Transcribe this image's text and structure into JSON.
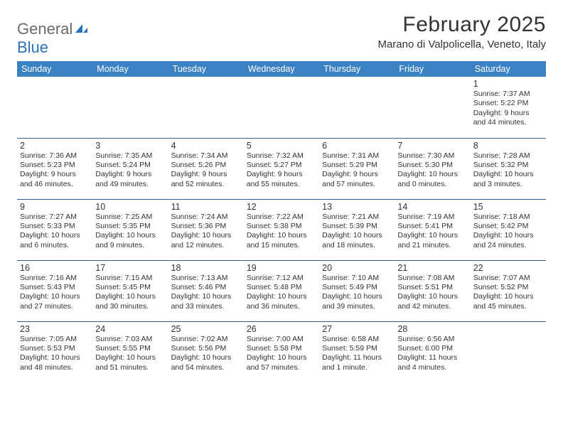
{
  "logo": {
    "text1": "General",
    "text2": "Blue"
  },
  "title": "February 2025",
  "location": "Marano di Valpolicella, Veneto, Italy",
  "colors": {
    "header_bg": "#3b82c4",
    "header_text": "#ffffff",
    "rule": "#2f5f8f",
    "text": "#333333",
    "logo_gray": "#6a6a6a",
    "logo_blue": "#2b72b9"
  },
  "weekdays": [
    "Sunday",
    "Monday",
    "Tuesday",
    "Wednesday",
    "Thursday",
    "Friday",
    "Saturday"
  ],
  "rows": [
    [
      null,
      null,
      null,
      null,
      null,
      null,
      {
        "n": "1",
        "sr": "7:37 AM",
        "ss": "5:22 PM",
        "dl": "9 hours and 44 minutes."
      }
    ],
    [
      {
        "n": "2",
        "sr": "7:36 AM",
        "ss": "5:23 PM",
        "dl": "9 hours and 46 minutes."
      },
      {
        "n": "3",
        "sr": "7:35 AM",
        "ss": "5:24 PM",
        "dl": "9 hours and 49 minutes."
      },
      {
        "n": "4",
        "sr": "7:34 AM",
        "ss": "5:26 PM",
        "dl": "9 hours and 52 minutes."
      },
      {
        "n": "5",
        "sr": "7:32 AM",
        "ss": "5:27 PM",
        "dl": "9 hours and 55 minutes."
      },
      {
        "n": "6",
        "sr": "7:31 AM",
        "ss": "5:29 PM",
        "dl": "9 hours and 57 minutes."
      },
      {
        "n": "7",
        "sr": "7:30 AM",
        "ss": "5:30 PM",
        "dl": "10 hours and 0 minutes."
      },
      {
        "n": "8",
        "sr": "7:28 AM",
        "ss": "5:32 PM",
        "dl": "10 hours and 3 minutes."
      }
    ],
    [
      {
        "n": "9",
        "sr": "7:27 AM",
        "ss": "5:33 PM",
        "dl": "10 hours and 6 minutes."
      },
      {
        "n": "10",
        "sr": "7:25 AM",
        "ss": "5:35 PM",
        "dl": "10 hours and 9 minutes."
      },
      {
        "n": "11",
        "sr": "7:24 AM",
        "ss": "5:36 PM",
        "dl": "10 hours and 12 minutes."
      },
      {
        "n": "12",
        "sr": "7:22 AM",
        "ss": "5:38 PM",
        "dl": "10 hours and 15 minutes."
      },
      {
        "n": "13",
        "sr": "7:21 AM",
        "ss": "5:39 PM",
        "dl": "10 hours and 18 minutes."
      },
      {
        "n": "14",
        "sr": "7:19 AM",
        "ss": "5:41 PM",
        "dl": "10 hours and 21 minutes."
      },
      {
        "n": "15",
        "sr": "7:18 AM",
        "ss": "5:42 PM",
        "dl": "10 hours and 24 minutes."
      }
    ],
    [
      {
        "n": "16",
        "sr": "7:16 AM",
        "ss": "5:43 PM",
        "dl": "10 hours and 27 minutes."
      },
      {
        "n": "17",
        "sr": "7:15 AM",
        "ss": "5:45 PM",
        "dl": "10 hours and 30 minutes."
      },
      {
        "n": "18",
        "sr": "7:13 AM",
        "ss": "5:46 PM",
        "dl": "10 hours and 33 minutes."
      },
      {
        "n": "19",
        "sr": "7:12 AM",
        "ss": "5:48 PM",
        "dl": "10 hours and 36 minutes."
      },
      {
        "n": "20",
        "sr": "7:10 AM",
        "ss": "5:49 PM",
        "dl": "10 hours and 39 minutes."
      },
      {
        "n": "21",
        "sr": "7:08 AM",
        "ss": "5:51 PM",
        "dl": "10 hours and 42 minutes."
      },
      {
        "n": "22",
        "sr": "7:07 AM",
        "ss": "5:52 PM",
        "dl": "10 hours and 45 minutes."
      }
    ],
    [
      {
        "n": "23",
        "sr": "7:05 AM",
        "ss": "5:53 PM",
        "dl": "10 hours and 48 minutes."
      },
      {
        "n": "24",
        "sr": "7:03 AM",
        "ss": "5:55 PM",
        "dl": "10 hours and 51 minutes."
      },
      {
        "n": "25",
        "sr": "7:02 AM",
        "ss": "5:56 PM",
        "dl": "10 hours and 54 minutes."
      },
      {
        "n": "26",
        "sr": "7:00 AM",
        "ss": "5:58 PM",
        "dl": "10 hours and 57 minutes."
      },
      {
        "n": "27",
        "sr": "6:58 AM",
        "ss": "5:59 PM",
        "dl": "11 hours and 1 minute."
      },
      {
        "n": "28",
        "sr": "6:56 AM",
        "ss": "6:00 PM",
        "dl": "11 hours and 4 minutes."
      },
      null
    ]
  ],
  "labels": {
    "sunrise": "Sunrise:",
    "sunset": "Sunset:",
    "daylight": "Daylight:"
  }
}
